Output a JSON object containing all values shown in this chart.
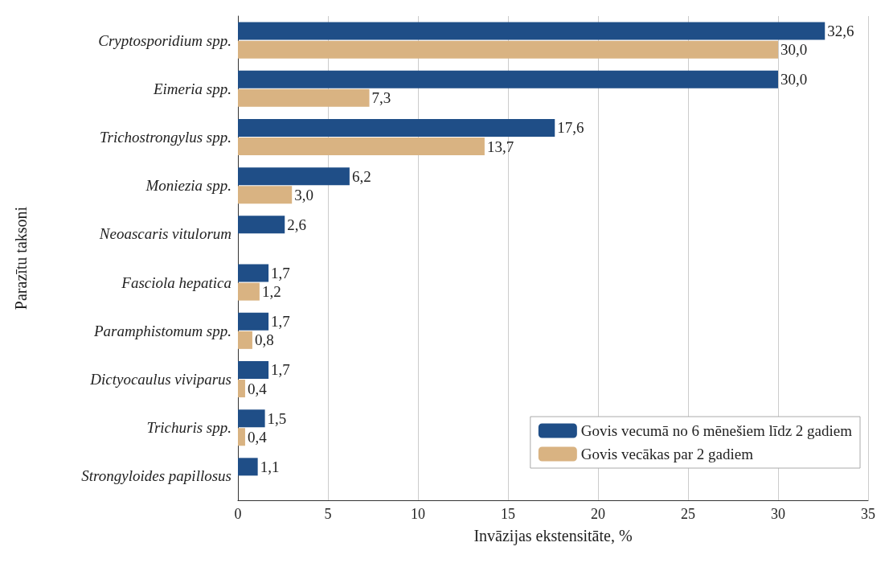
{
  "chart_data": {
    "type": "bar",
    "orientation": "horizontal",
    "xlabel": "Invāzijas ekstensitāte, %",
    "ylabel": "Parazītu taksoni",
    "categories": [
      "Cryptosporidium spp.",
      "Eimeria spp.",
      "Trichostrongylus spp.",
      "Moniezia spp.",
      "Neoascaris vitulorum",
      "Fasciola hepatica",
      "Paramphistomum spp.",
      "Dictyocaulus viviparus",
      "Trichuris spp.",
      "Strongyloides papillosus"
    ],
    "series": [
      {
        "name": "Govis vecumā no 6 mēnešiem līdz 2 gadiem",
        "color": "#1f4e87",
        "values": [
          32.6,
          30.0,
          17.6,
          6.2,
          2.6,
          1.7,
          1.7,
          1.7,
          1.5,
          1.1
        ],
        "value_labels": [
          "32,6",
          "30,0",
          "17,6",
          "6,2",
          "2,6",
          "1,7",
          "1,7",
          "1,7",
          "1,5",
          "1,1"
        ]
      },
      {
        "name": "Govis vecākas par 2 gadiem",
        "color": "#d9b382",
        "values": [
          30.0,
          7.3,
          13.7,
          3.0,
          null,
          1.2,
          0.8,
          0.4,
          0.4,
          null
        ],
        "value_labels": [
          "30,0",
          "7,3",
          "13,7",
          "3,0",
          null,
          "1,2",
          "0,8",
          "0,4",
          "0,4",
          null
        ]
      }
    ],
    "xlim": [
      0,
      35
    ],
    "xticks": [
      0,
      5,
      10,
      15,
      20,
      25,
      30,
      35
    ],
    "grid": "x",
    "legend": "bottom right"
  }
}
